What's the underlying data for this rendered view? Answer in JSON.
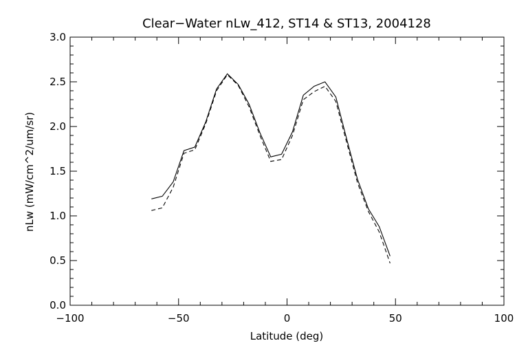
{
  "chart_data": {
    "type": "line",
    "title": "Clear−Water nLw_412, ST14 & ST13, 2004128",
    "xlabel": "Latitude (deg)",
    "ylabel": "nLw (mW/cm^2/um/sr)",
    "xlim": [
      -100,
      100
    ],
    "ylim": [
      0.0,
      3.0
    ],
    "grid": false,
    "x_ticks": [
      "−100",
      "−50",
      "0",
      "50",
      "100"
    ],
    "x_tick_values": [
      -100,
      -50,
      0,
      50,
      100
    ],
    "y_ticks": [
      "0.0",
      "0.5",
      "1.0",
      "1.5",
      "2.0",
      "2.5",
      "3.0"
    ],
    "y_tick_values": [
      0.0,
      0.5,
      1.0,
      1.5,
      2.0,
      2.5,
      3.0
    ],
    "series": [
      {
        "style": "solid",
        "color": "#000000",
        "x": [
          -62.5,
          -57.5,
          -52.5,
          -47.5,
          -42.5,
          -37.5,
          -32.5,
          -27.5,
          -22.5,
          -17.5,
          -12.5,
          -7.5,
          -2.5,
          2.5,
          7.5,
          12.5,
          17.5,
          22.5,
          27.5,
          32.5,
          37.5,
          42.5,
          47.5
        ],
        "y": [
          1.19,
          1.22,
          1.38,
          1.73,
          1.77,
          2.05,
          2.42,
          2.59,
          2.47,
          2.25,
          1.93,
          1.66,
          1.69,
          1.94,
          2.35,
          2.45,
          2.5,
          2.33,
          1.86,
          1.41,
          1.08,
          0.88,
          0.55
        ]
      },
      {
        "style": "dashed",
        "color": "#000000",
        "x": [
          -62.5,
          -57.5,
          -52.5,
          -47.5,
          -42.5,
          -37.5,
          -32.5,
          -27.5,
          -22.5,
          -17.5,
          -12.5,
          -7.5,
          -2.5,
          2.5,
          7.5,
          12.5,
          17.5,
          22.5,
          27.5,
          32.5,
          37.5,
          42.5,
          47.5
        ],
        "y": [
          1.06,
          1.09,
          1.32,
          1.7,
          1.74,
          2.03,
          2.4,
          2.58,
          2.46,
          2.22,
          1.9,
          1.61,
          1.63,
          1.9,
          2.3,
          2.39,
          2.45,
          2.28,
          1.82,
          1.37,
          1.05,
          0.82,
          0.47
        ]
      }
    ]
  }
}
